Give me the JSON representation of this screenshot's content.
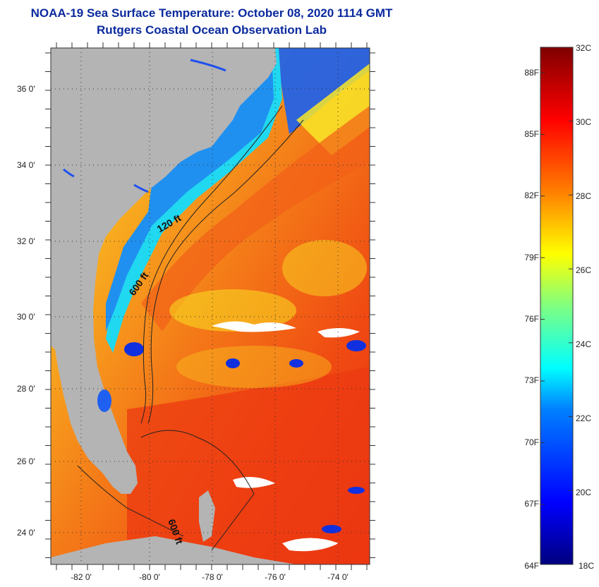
{
  "header": {
    "title": "NOAA-19 Sea Surface Temperature:  October 08, 2020 1114 GMT",
    "subtitle": "Rutgers Coastal Ocean Observation Lab"
  },
  "map": {
    "lat_ticks": [
      "36 0'",
      "34 0'",
      "32 0'",
      "30 0'",
      "28 0'",
      "26 0'",
      "24 0'"
    ],
    "lon_ticks": [
      "-82 0'",
      "-80 0'",
      "-78 0'",
      "-76 0'",
      "-74 0'"
    ],
    "depth_contours": [
      "120 ft",
      "600 ft",
      "600 ft"
    ],
    "colors": {
      "land": "#b4b4b4",
      "cloud": "#ffffff",
      "warm_water": "#f04010",
      "mid_water": "#f8a020",
      "cool_water": "#f0f020",
      "coastal_cold": "#1050f0",
      "coastal_cyan": "#20e0f0"
    }
  },
  "colorbar": {
    "celsius_labels": [
      "32C",
      "30C",
      "28C",
      "26C",
      "24C",
      "22C",
      "20C",
      "18C"
    ],
    "fahrenheit_labels": [
      "88F",
      "85F",
      "82F",
      "79F",
      "76F",
      "73F",
      "70F",
      "67F",
      "64F"
    ],
    "range_c": [
      18,
      32
    ],
    "colors": [
      "#00007f",
      "#0000ff",
      "#0080ff",
      "#00ffff",
      "#80ff80",
      "#ffff00",
      "#ff8000",
      "#ff0000",
      "#7f0000"
    ]
  }
}
